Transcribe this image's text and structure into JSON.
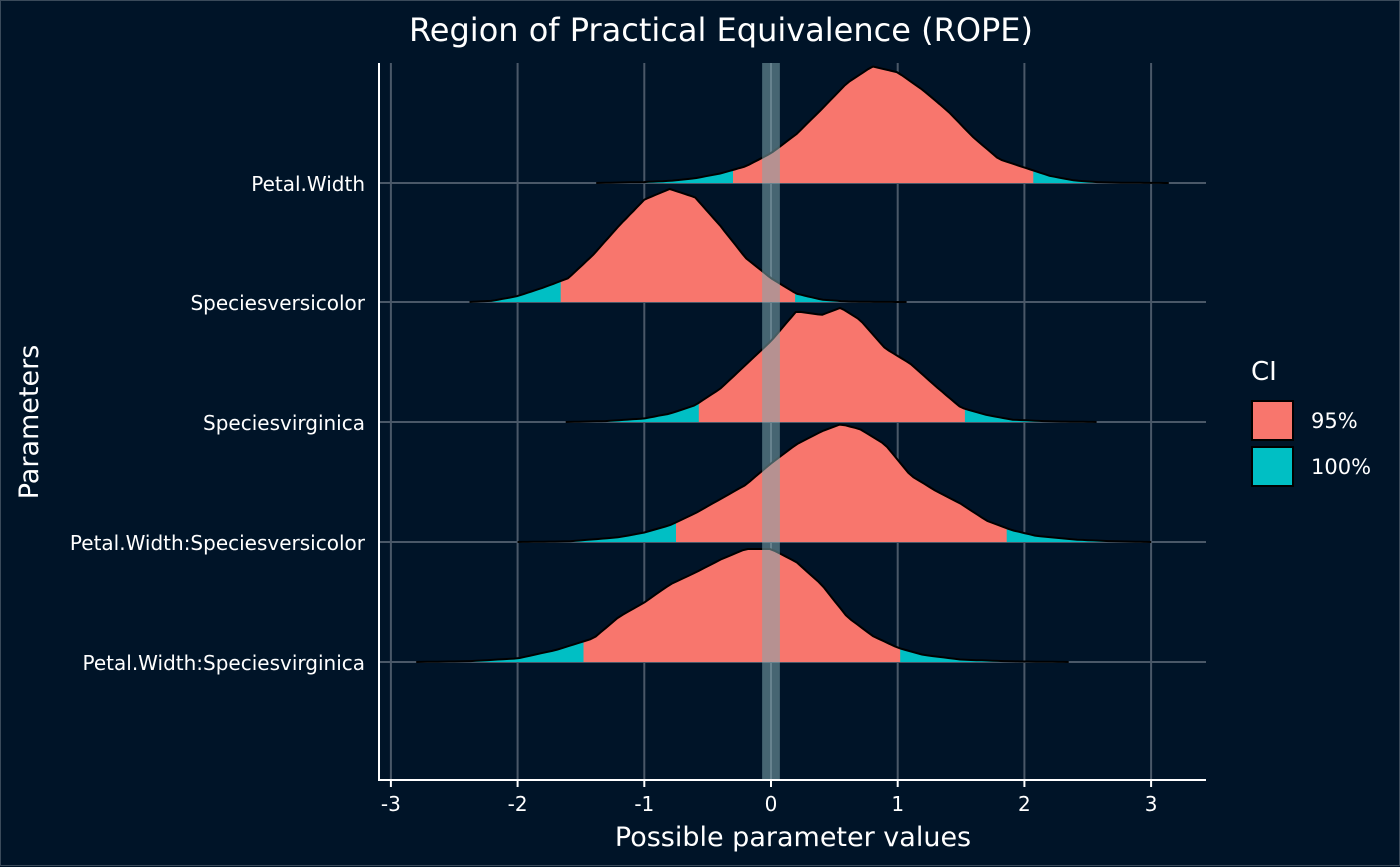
{
  "chart_data": {
    "type": "density-ridges",
    "title": "Region of Practical Equivalence (ROPE)",
    "xlabel": "Possible parameter values",
    "ylabel": "Parameters",
    "xlim": [
      -3.1,
      3.4
    ],
    "xticks": [
      -3,
      -2,
      -1,
      0,
      1,
      2,
      3
    ],
    "xtick_labels": [
      "-3",
      "-2",
      "-1",
      "0",
      "1",
      "2",
      "3"
    ],
    "rope": [
      -0.07,
      0.07
    ],
    "legend": {
      "title": "CI",
      "placement": "right",
      "entries": [
        {
          "label": "95%",
          "color": "#F8766D"
        },
        {
          "label": "100%",
          "color": "#00BFC4"
        }
      ]
    },
    "series": [
      {
        "name": "Petal.Width",
        "ci95": [
          -0.3,
          2.07
        ],
        "ci100": [
          -1.38,
          3.14
        ],
        "density": [
          [
            -1.38,
            0
          ],
          [
            -1.0,
            0.008
          ],
          [
            -0.8,
            0.018
          ],
          [
            -0.6,
            0.04
          ],
          [
            -0.4,
            0.08
          ],
          [
            -0.2,
            0.14
          ],
          [
            0.0,
            0.25
          ],
          [
            0.2,
            0.41
          ],
          [
            0.4,
            0.62
          ],
          [
            0.6,
            0.84
          ],
          [
            0.8,
            0.98
          ],
          [
            1.0,
            0.93
          ],
          [
            1.2,
            0.78
          ],
          [
            1.4,
            0.6
          ],
          [
            1.6,
            0.38
          ],
          [
            1.8,
            0.2
          ],
          [
            2.0,
            0.13
          ],
          [
            2.2,
            0.06
          ],
          [
            2.4,
            0.02
          ],
          [
            2.6,
            0.006
          ],
          [
            2.8,
            0.002
          ],
          [
            3.14,
            0
          ]
        ]
      },
      {
        "name": "Speciesversicolor",
        "ci95": [
          -1.66,
          0.19
        ],
        "ci100": [
          -2.38,
          1.07
        ],
        "density": [
          [
            -2.38,
            0
          ],
          [
            -2.2,
            0.01
          ],
          [
            -2.0,
            0.05
          ],
          [
            -1.8,
            0.12
          ],
          [
            -1.6,
            0.2
          ],
          [
            -1.4,
            0.4
          ],
          [
            -1.2,
            0.64
          ],
          [
            -1.0,
            0.86
          ],
          [
            -0.8,
            0.95
          ],
          [
            -0.6,
            0.88
          ],
          [
            -0.4,
            0.64
          ],
          [
            -0.2,
            0.37
          ],
          [
            0.0,
            0.2
          ],
          [
            0.2,
            0.07
          ],
          [
            0.4,
            0.02
          ],
          [
            0.6,
            0.004
          ],
          [
            0.8,
            0.001
          ],
          [
            1.07,
            0
          ]
        ]
      },
      {
        "name": "Speciesvirginica",
        "ci95": [
          -0.57,
          1.53
        ],
        "ci100": [
          -1.62,
          2.57
        ],
        "density": [
          [
            -1.62,
            0
          ],
          [
            -1.3,
            0.008
          ],
          [
            -1.0,
            0.03
          ],
          [
            -0.8,
            0.07
          ],
          [
            -0.6,
            0.14
          ],
          [
            -0.4,
            0.28
          ],
          [
            -0.2,
            0.48
          ],
          [
            0.0,
            0.68
          ],
          [
            0.2,
            0.93
          ],
          [
            0.4,
            0.9
          ],
          [
            0.55,
            0.96
          ],
          [
            0.7,
            0.86
          ],
          [
            0.9,
            0.62
          ],
          [
            1.1,
            0.49
          ],
          [
            1.3,
            0.3
          ],
          [
            1.5,
            0.12
          ],
          [
            1.7,
            0.06
          ],
          [
            1.9,
            0.02
          ],
          [
            2.2,
            0.005
          ],
          [
            2.57,
            0
          ]
        ]
      },
      {
        "name": "Petal.Width:Speciesversicolor",
        "ci95": [
          -0.75,
          1.86
        ],
        "ci100": [
          -2.0,
          3.0
        ],
        "density": [
          [
            -2.0,
            0
          ],
          [
            -1.6,
            0.005
          ],
          [
            -1.2,
            0.04
          ],
          [
            -1.0,
            0.08
          ],
          [
            -0.8,
            0.14
          ],
          [
            -0.6,
            0.24
          ],
          [
            -0.4,
            0.36
          ],
          [
            -0.2,
            0.48
          ],
          [
            0.0,
            0.66
          ],
          [
            0.2,
            0.82
          ],
          [
            0.4,
            0.93
          ],
          [
            0.55,
            0.99
          ],
          [
            0.7,
            0.95
          ],
          [
            0.9,
            0.82
          ],
          [
            1.1,
            0.56
          ],
          [
            1.3,
            0.43
          ],
          [
            1.5,
            0.32
          ],
          [
            1.7,
            0.18
          ],
          [
            1.9,
            0.1
          ],
          [
            2.1,
            0.05
          ],
          [
            2.4,
            0.02
          ],
          [
            2.7,
            0.006
          ],
          [
            3.0,
            0
          ]
        ]
      },
      {
        "name": "Petal.Width:Speciesvirginica",
        "ci95": [
          -1.48,
          1.02
        ],
        "ci100": [
          -2.8,
          2.35
        ],
        "density": [
          [
            -2.8,
            0
          ],
          [
            -2.4,
            0.006
          ],
          [
            -2.0,
            0.03
          ],
          [
            -1.7,
            0.1
          ],
          [
            -1.4,
            0.2
          ],
          [
            -1.2,
            0.38
          ],
          [
            -1.0,
            0.5
          ],
          [
            -0.8,
            0.65
          ],
          [
            -0.6,
            0.75
          ],
          [
            -0.4,
            0.86
          ],
          [
            -0.2,
            0.95
          ],
          [
            0.0,
            0.95
          ],
          [
            0.2,
            0.84
          ],
          [
            0.4,
            0.65
          ],
          [
            0.6,
            0.38
          ],
          [
            0.8,
            0.22
          ],
          [
            1.0,
            0.12
          ],
          [
            1.2,
            0.06
          ],
          [
            1.5,
            0.02
          ],
          [
            1.9,
            0.005
          ],
          [
            2.35,
            0
          ]
        ]
      }
    ]
  },
  "colors": {
    "background": "#001428",
    "text": "#FFFFFF",
    "grid": "#4a5868",
    "axis": "#FFFFFF",
    "rope": "#7FA8AE",
    "outline": "#000000"
  }
}
